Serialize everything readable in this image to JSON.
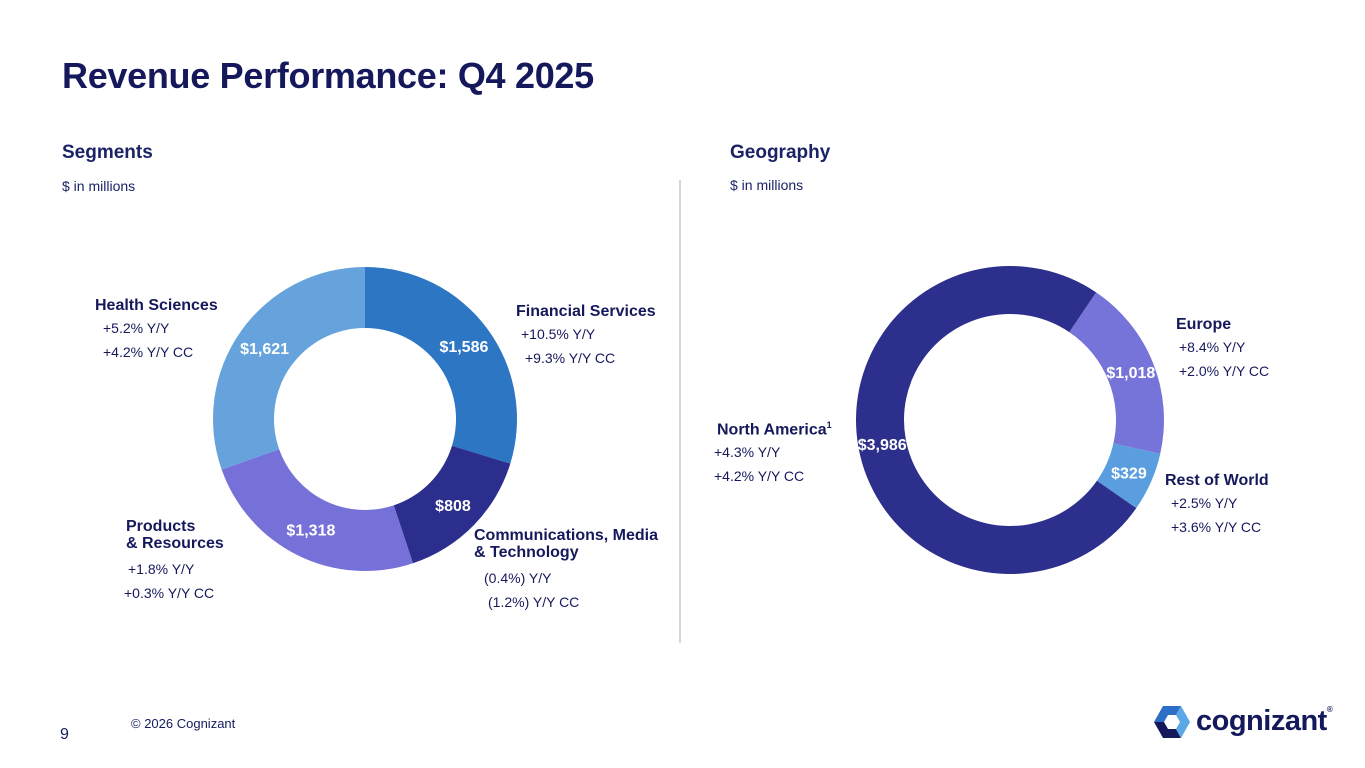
{
  "title": "Revenue Performance: Q4 2025",
  "segments": {
    "title": "Segments",
    "unit": "$ in millions",
    "labels": {
      "financial": {
        "name": "Financial Services",
        "m1": "+10.5% Y/Y",
        "m2": "+9.3%  Y/Y CC"
      },
      "health": {
        "name": "Health Sciences",
        "m1": "+5.2%  Y/Y",
        "m2": "+4.2%  Y/Y CC"
      },
      "products": {
        "name1": "Products",
        "name2": "& Resources",
        "m1": "+1.8%  Y/Y",
        "m2": "+0.3%  Y/Y CC"
      },
      "cmt": {
        "name1": "Communications, Media",
        "name2": "& Technology",
        "m1": "(0.4%) Y/Y",
        "m2": "(1.2%) Y/Y CC"
      }
    }
  },
  "geography": {
    "title": "Geography",
    "unit": "$ in millions",
    "labels": {
      "europe": {
        "name": "Europe",
        "m1": "+8.4%  Y/Y",
        "m2": "+2.0%  Y/Y CC"
      },
      "rest": {
        "name": "Rest of World",
        "m1": "+2.5%  Y/Y",
        "m2": "+3.6%  Y/Y CC"
      },
      "na": {
        "name": "North America",
        "sup": "1",
        "m1": "+4.3%  Y/Y",
        "m2": "+4.2% Y/Y CC"
      }
    }
  },
  "chart_data": [
    {
      "type": "pie",
      "title": "Segments",
      "unit": "$ in millions",
      "categories": [
        "Financial Services",
        "Communications, Media & Technology",
        "Products & Resources",
        "Health Sciences"
      ],
      "values": [
        1586,
        808,
        1318,
        1621
      ],
      "data_labels": [
        "$1,586",
        "$808",
        "$1,318",
        "$1,621"
      ],
      "colors": [
        "#2c76c4",
        "#2b2e8c",
        "#7571d8",
        "#66a3dc"
      ]
    },
    {
      "type": "pie",
      "title": "Geography",
      "unit": "$ in millions",
      "categories": [
        "Europe",
        "Rest of World",
        "North America"
      ],
      "values": [
        1018,
        329,
        3986
      ],
      "data_labels": [
        "$1,018",
        "$329",
        "$3,986"
      ],
      "colors": [
        "#7774d9",
        "#5b9ee0",
        "#2d2f8c"
      ]
    }
  ],
  "footer": {
    "page_number": "9",
    "copyright": "© 2026 Cognizant",
    "logo_text": "cognizant",
    "logo_reg": "®"
  }
}
